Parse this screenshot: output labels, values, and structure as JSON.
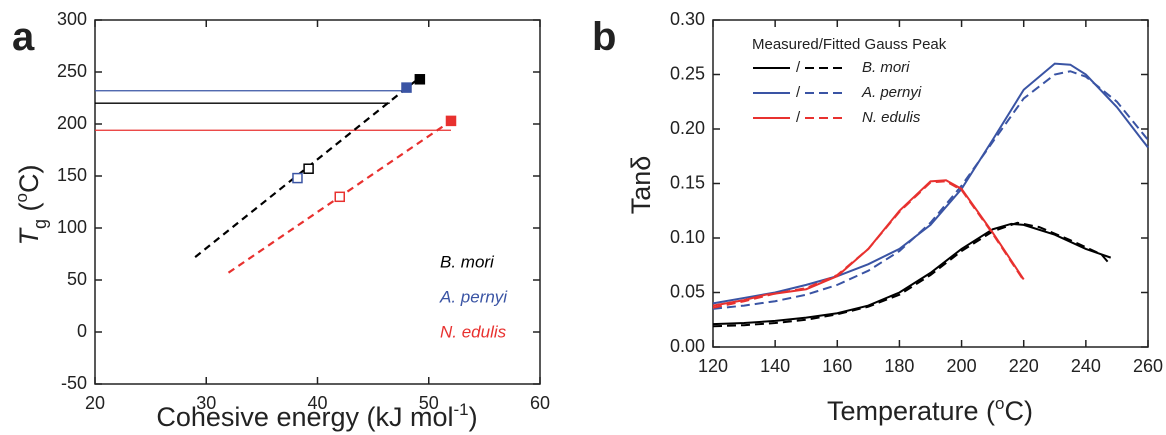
{
  "chart_data": [
    {
      "type": "scatter",
      "panel": "a",
      "xlabel": [
        "Cohesive energy (kJ mol",
        "-1",
        ")"
      ],
      "ylabel": [
        "T",
        "g",
        " (",
        "o",
        "C)"
      ],
      "xlim": [
        20,
        60
      ],
      "xticks": [
        20,
        30,
        40,
        50,
        60
      ],
      "ylim": [
        -50,
        300
      ],
      "yticks": [
        -50,
        0,
        50,
        100,
        150,
        200,
        250,
        300
      ],
      "series": [
        {
          "name": "B. mori",
          "color": "#000000",
          "markers": [
            "open",
            "filled"
          ],
          "x": [
            39.2,
            49.2
          ],
          "values": [
            157,
            243
          ]
        },
        {
          "name": "A. pernyi",
          "color": "#3a54a4",
          "markers": [
            "open",
            "filled"
          ],
          "x": [
            38.2,
            48
          ],
          "values": [
            148,
            235
          ]
        },
        {
          "name": "N. edulis",
          "color": "#e8312f",
          "markers": [
            "open",
            "filled"
          ],
          "x": [
            42,
            52
          ],
          "values": [
            130,
            203
          ]
        }
      ],
      "fit_lines": [
        {
          "color": "#000000",
          "x": [
            29,
            49
          ],
          "values": [
            72,
            243
          ]
        },
        {
          "color": "#e8312f",
          "x": [
            32,
            52
          ],
          "values": [
            57,
            203
          ]
        }
      ],
      "hlines": [
        {
          "color": "#3a54a4",
          "x": [
            20,
            48
          ],
          "values": [
            232,
            232
          ]
        },
        {
          "color": "#000000",
          "x": [
            20,
            46.5
          ],
          "values": [
            220,
            220
          ]
        },
        {
          "color": "#e8312f",
          "x": [
            20,
            52
          ],
          "values": [
            194,
            194
          ]
        }
      ]
    },
    {
      "type": "line",
      "panel": "b",
      "xlabel": [
        "Temperature (",
        "o",
        "C)"
      ],
      "ylabel": "Tanδ",
      "legend_title": "Measured/Fitted Gauss Peak",
      "legend_separator": "/",
      "xlim": [
        120,
        260
      ],
      "xticks": [
        120,
        140,
        160,
        180,
        200,
        220,
        240,
        260
      ],
      "ylim": [
        0,
        0.3
      ],
      "yticks": [
        {
          "value": 0,
          "label": "0.00"
        },
        {
          "value": 0.05,
          "label": "0.05"
        },
        {
          "value": 0.1,
          "label": "0.10"
        },
        {
          "value": 0.15,
          "label": "0.15"
        },
        {
          "value": 0.2,
          "label": "0.20"
        },
        {
          "value": 0.25,
          "label": "0.25"
        },
        {
          "value": 0.3,
          "label": "0.30"
        }
      ],
      "series": [
        {
          "name": "B. mori",
          "color": "#000000",
          "measured": {
            "x": [
              120,
              130,
              140,
              150,
              160,
              170,
              180,
              190,
              200,
              210,
              216,
              220,
              230,
              240,
              248
            ],
            "values": [
              0.021,
              0.022,
              0.024,
              0.027,
              0.031,
              0.038,
              0.05,
              0.068,
              0.09,
              0.108,
              0.113,
              0.112,
              0.103,
              0.09,
              0.082
            ]
          },
          "fitted": {
            "x": [
              120,
              130,
              140,
              150,
              160,
              170,
              180,
              190,
              200,
              210,
              218,
              225,
              235,
              245,
              248
            ],
            "values": [
              0.019,
              0.02,
              0.022,
              0.025,
              0.03,
              0.037,
              0.048,
              0.066,
              0.088,
              0.106,
              0.114,
              0.11,
              0.098,
              0.085,
              0.075
            ]
          }
        },
        {
          "name": "A. pernyi",
          "color": "#3a54a4",
          "measured": {
            "x": [
              120,
              130,
              140,
              150,
              160,
              170,
              180,
              190,
              200,
              210,
              220,
              230,
              235,
              240,
              250,
              260
            ],
            "values": [
              0.04,
              0.045,
              0.05,
              0.057,
              0.065,
              0.076,
              0.09,
              0.112,
              0.145,
              0.19,
              0.236,
              0.26,
              0.259,
              0.25,
              0.22,
              0.183
            ]
          },
          "fitted": {
            "x": [
              120,
              130,
              140,
              150,
              160,
              170,
              180,
              190,
              200,
              210,
              220,
              230,
              235,
              240,
              250,
              260
            ],
            "values": [
              0.035,
              0.038,
              0.042,
              0.048,
              0.057,
              0.07,
              0.088,
              0.114,
              0.148,
              0.188,
              0.228,
              0.25,
              0.253,
              0.248,
              0.225,
              0.19
            ]
          }
        },
        {
          "name": "N. edulis",
          "color": "#e8312f",
          "measured": {
            "x": [
              120,
              130,
              137,
              140,
              150,
              160,
              170,
              180,
              190,
              195,
              200,
              210,
              220
            ],
            "values": [
              0.038,
              0.043,
              0.048,
              0.049,
              0.053,
              0.065,
              0.09,
              0.125,
              0.152,
              0.153,
              0.145,
              0.105,
              0.062
            ]
          },
          "fitted": {
            "x": [
              120,
              130,
              140,
              150,
              160,
              170,
              180,
              190,
              195,
              200,
              210,
              220
            ],
            "values": [
              0.036,
              0.042,
              0.049,
              0.054,
              0.066,
              0.09,
              0.124,
              0.151,
              0.152,
              0.144,
              0.104,
              0.061
            ]
          }
        }
      ]
    }
  ]
}
